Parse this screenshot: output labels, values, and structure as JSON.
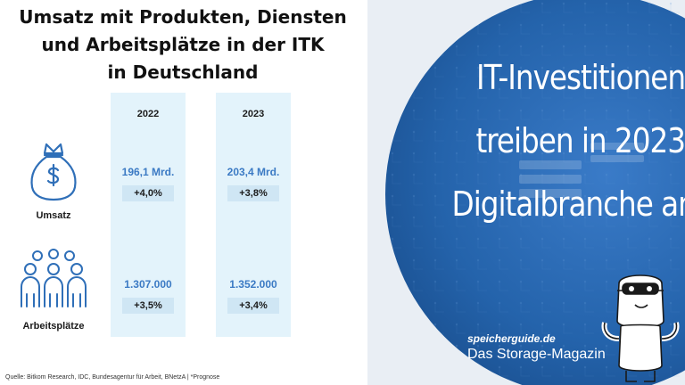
{
  "infographic": {
    "title_lines": [
      "Umsatz mit Produkten, Diensten",
      "und Arbeitsplätze in der ITK",
      "in Deutschland"
    ],
    "years": [
      "2022",
      "2023"
    ],
    "rows": [
      {
        "label": "Umsatz",
        "icon": "money-bag-icon",
        "values": [
          "196,1 Mrd.",
          "203,4 Mrd."
        ],
        "changes": [
          "+4,0%",
          "+3,8%"
        ]
      },
      {
        "label": "Arbeitsplätze",
        "icon": "people-group-icon",
        "values": [
          "1.307.000",
          "1.352.000"
        ],
        "changes": [
          "+3,5%",
          "+3,4%"
        ]
      }
    ],
    "source": "Quelle: Bitkom Research, IDC, Bundesagentur für Arbeit, BNetzA | *Prognose"
  },
  "hero": {
    "headline_lines": [
      "IT-Investitionen",
      "treiben in 2023",
      "Digitalbranche an"
    ],
    "brand_site": "speicherguide.de",
    "brand_tagline": "Das Storage-Magazin",
    "mascot_icon": "robot-mascot-icon"
  },
  "colors": {
    "hero_blue": "#1f5fa8",
    "column_bg": "#e3f3fb",
    "badge_bg": "#cfe6f4",
    "value_text": "#3b7ac4",
    "icon_stroke": "#2f6fb8"
  }
}
